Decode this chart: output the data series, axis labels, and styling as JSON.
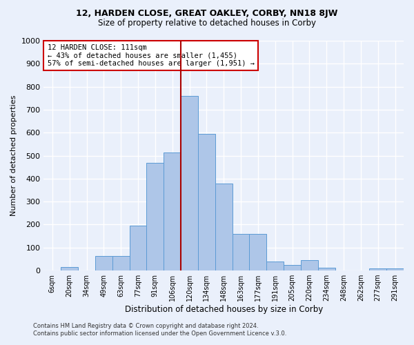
{
  "title": "12, HARDEN CLOSE, GREAT OAKLEY, CORBY, NN18 8JW",
  "subtitle": "Size of property relative to detached houses in Corby",
  "xlabel": "Distribution of detached houses by size in Corby",
  "ylabel": "Number of detached properties",
  "footer1": "Contains HM Land Registry data © Crown copyright and database right 2024.",
  "footer2": "Contains public sector information licensed under the Open Government Licence v.3.0.",
  "bin_labels": [
    "6sqm",
    "20sqm",
    "34sqm",
    "49sqm",
    "63sqm",
    "77sqm",
    "91sqm",
    "106sqm",
    "120sqm",
    "134sqm",
    "148sqm",
    "163sqm",
    "177sqm",
    "191sqm",
    "205sqm",
    "220sqm",
    "234sqm",
    "248sqm",
    "262sqm",
    "277sqm",
    "291sqm"
  ],
  "bar_heights": [
    0,
    15,
    0,
    62,
    62,
    195,
    470,
    515,
    760,
    595,
    380,
    160,
    160,
    40,
    25,
    45,
    12,
    0,
    0,
    8,
    8
  ],
  "bar_color": "#aec6e8",
  "bar_edge_color": "#5b9bd5",
  "bg_color": "#eaf0fb",
  "grid_color": "#ffffff",
  "vline_x": 8.0,
  "vline_color": "#aa0000",
  "annotation_line1": "12 HARDEN CLOSE: 111sqm",
  "annotation_line2": "← 43% of detached houses are smaller (1,455)",
  "annotation_line3": "57% of semi-detached houses are larger (1,951) →",
  "annotation_box_color": "#ffffff",
  "annotation_box_edge": "#cc0000",
  "ylim": [
    0,
    1000
  ],
  "yticks": [
    0,
    100,
    200,
    300,
    400,
    500,
    600,
    700,
    800,
    900,
    1000
  ]
}
